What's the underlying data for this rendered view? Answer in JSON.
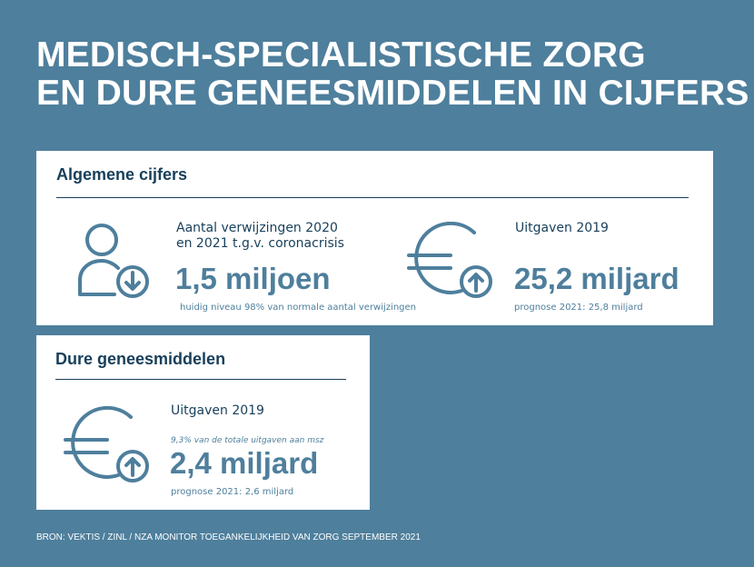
{
  "title": {
    "line1": "MEDISCH-SPECIALISTISCHE ZORG",
    "line2": "EN DURE GENEESMIDDELEN IN CIJFERS"
  },
  "general": {
    "heading": "Algemene cijfers",
    "referrals": {
      "label_line1": "Aantal verwijzingen 2020",
      "label_line2": "en 2021 t.g.v. coronacrisis",
      "value": "1,5 miljoen",
      "note": "huidig niveau 98% van normale aantal verwijzingen",
      "icon": "person-arrow-down-icon"
    },
    "spending": {
      "label": "Uitgaven 2019",
      "value": "25,2 miljard",
      "note": "prognose 2021: 25,8 miljard",
      "icon": "euro-arrow-up-icon"
    }
  },
  "expensive_drugs": {
    "heading": "Dure geneesmiddelen",
    "spending": {
      "label": "Uitgaven 2019",
      "share_note": "9,3% van de totale uitgaven aan msz",
      "value": "2,4 miljard",
      "note": "prognose 2021: 2,6 miljard",
      "icon": "euro-arrow-up-icon"
    }
  },
  "source": "BRON: VEKTIS / ZINL / NZA MONITOR TOEGANKELIJKHEID VAN ZORG SEPTEMBER 2021",
  "colors": {
    "background": "#4e7f9c",
    "heading": "#173f5a",
    "value": "#4e7f9c",
    "card": "#ffffff"
  }
}
